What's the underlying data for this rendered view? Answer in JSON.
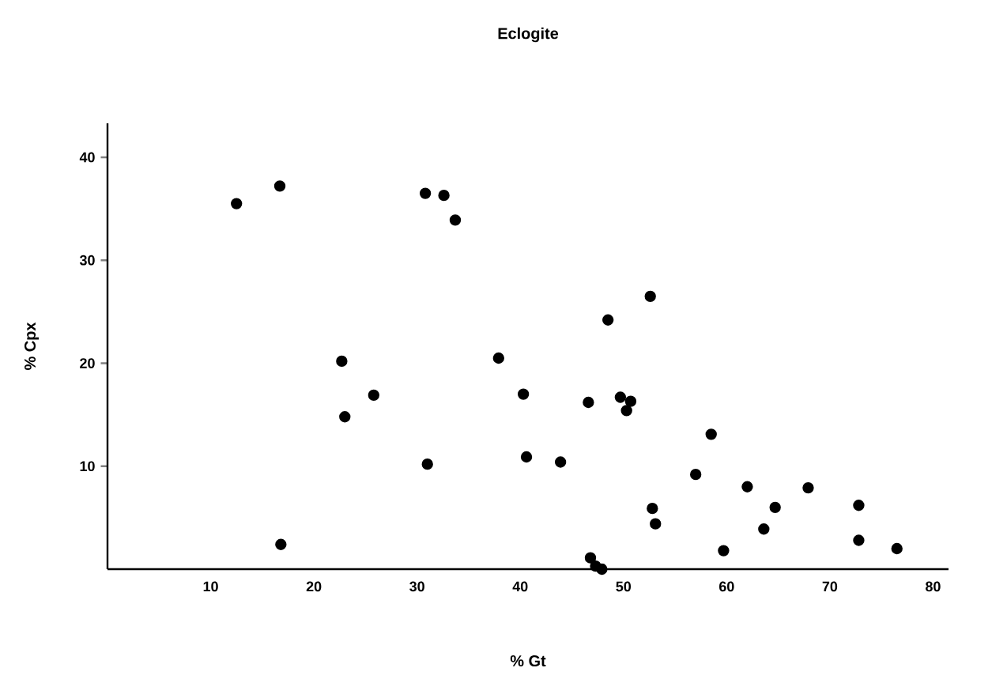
{
  "chart_data": {
    "type": "scatter",
    "title": "Eclogite",
    "xlabel": "% Gt",
    "ylabel": "% Cpx",
    "xlim": [
      0,
      81.5
    ],
    "ylim": [
      0,
      43.3
    ],
    "xticks": [
      10,
      20,
      30,
      40,
      50,
      60,
      70,
      80
    ],
    "yticks": [
      10,
      20,
      30,
      40
    ],
    "grid": false,
    "series": [
      {
        "color": "#000000",
        "x": [
          12.5,
          16.7,
          30.8,
          32.6,
          33.7,
          22.7,
          23.0,
          25.8,
          37.9,
          40.3,
          40.6,
          43.9,
          31.0,
          16.8,
          48.5,
          52.6,
          46.6,
          49.7,
          50.7,
          50.3,
          58.5,
          57.0,
          62.0,
          67.9,
          52.8,
          53.1,
          64.7,
          63.6,
          72.8,
          72.8,
          76.5,
          59.7,
          46.8,
          47.3,
          47.9
        ],
        "values": [
          35.5,
          37.2,
          36.5,
          36.3,
          33.9,
          20.2,
          14.8,
          16.9,
          20.5,
          17.0,
          10.9,
          10.4,
          10.2,
          2.4,
          24.2,
          26.5,
          16.2,
          16.7,
          16.3,
          15.4,
          13.1,
          9.2,
          8.0,
          7.9,
          5.9,
          4.4,
          6.0,
          3.9,
          6.2,
          2.8,
          2.0,
          1.8,
          1.1,
          0.3,
          0.0
        ]
      }
    ]
  }
}
